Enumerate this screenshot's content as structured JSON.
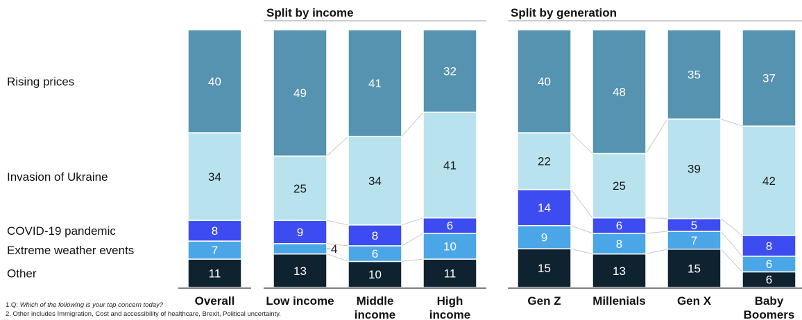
{
  "chart_data": {
    "type": "bar",
    "stacked": true,
    "normalized": true,
    "group_titles": [
      {
        "key": "income",
        "title": "Split by income"
      },
      {
        "key": "generation",
        "title": "Split by generation"
      }
    ],
    "series": [
      {
        "name": "Other",
        "color": "#0f2230"
      },
      {
        "name": "Extreme weather events",
        "color": "#4aa6e6"
      },
      {
        "name": "COVID-19 pandemic",
        "color": "#3c4cf0"
      },
      {
        "name": "Invasion of Ukraine",
        "color": "#b8e3ee"
      },
      {
        "name": "Rising prices",
        "color": "#5593b0"
      }
    ],
    "bars": [
      {
        "group": "overall",
        "label": [
          "Overall"
        ],
        "values": [
          11,
          7,
          8,
          34,
          40
        ]
      },
      {
        "group": "income",
        "label": [
          "Low income"
        ],
        "values": [
          13,
          4,
          9,
          25,
          49
        ]
      },
      {
        "group": "income",
        "label": [
          "Middle",
          "income"
        ],
        "values": [
          10,
          6,
          8,
          34,
          41
        ]
      },
      {
        "group": "income",
        "label": [
          "High",
          "income"
        ],
        "values": [
          11,
          10,
          6,
          41,
          32
        ]
      },
      {
        "group": "generation",
        "label": [
          "Gen Z"
        ],
        "values": [
          15,
          9,
          14,
          22,
          40
        ]
      },
      {
        "group": "generation",
        "label": [
          "Millenials"
        ],
        "values": [
          13,
          8,
          6,
          25,
          48
        ]
      },
      {
        "group": "generation",
        "label": [
          "Gen X"
        ],
        "values": [
          15,
          7,
          5,
          39,
          35
        ]
      },
      {
        "group": "generation",
        "label": [
          "Baby",
          "Boomers"
        ],
        "values": [
          6,
          6,
          8,
          42,
          37
        ]
      }
    ]
  },
  "footnotes": {
    "q_prefix": "1.Q: ",
    "q_text": "Which of the following is your top concern today?",
    "note2": "2. Other includes Immigration, Cost and accessibility of healthcare, Brexit, Political uncertainty."
  }
}
